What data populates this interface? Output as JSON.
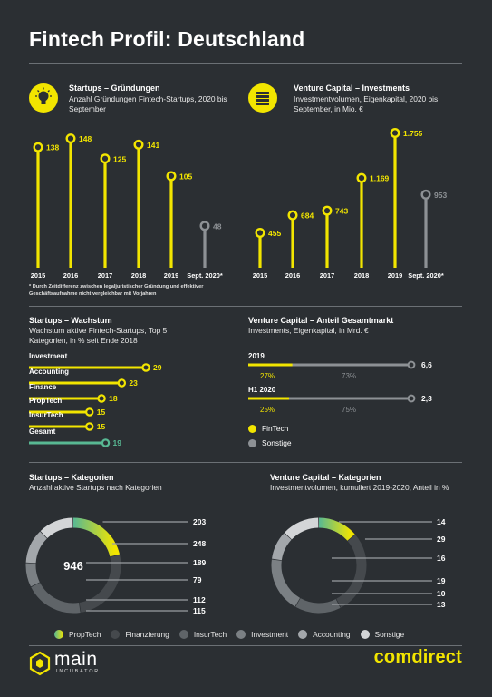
{
  "page": {
    "title": "Fintech Profil: Deutschland"
  },
  "colors": {
    "yellow": "#f2e500",
    "grey": "#8d9195",
    "bg": "#2b2f33",
    "green": "#58b893",
    "dim": "#5c6166"
  },
  "sections": {
    "startups_gruendungen": {
      "title": "Startups – Gründungen",
      "subtitle": "Anzahl Gründungen Fintech-Startups, 2020 bis September",
      "icon": "lightbulb-icon"
    },
    "vc_investments": {
      "title": "Venture Capital – Investments",
      "subtitle": "Investmentvolumen, Eigenkapital, 2020 bis September, in Mio. €",
      "icon": "money-stack-icon"
    },
    "startups_wachstum": {
      "title": "Startups – Wachstum",
      "subtitle": "Wachstum aktive Fintech-Startups, Top 5 Kategorien, in % seit Ende 2018"
    },
    "vc_anteil": {
      "title": "Venture Capital – Anteil Gesamtmarkt",
      "subtitle": "Investments, Eigenkapital, in Mrd. €"
    },
    "startups_kategorien": {
      "title": "Startups – Kategorien",
      "subtitle": "Anzahl aktive Startups nach Kategorien"
    },
    "vc_kategorien": {
      "title": "Venture Capital – Kategorien",
      "subtitle": "Investmentvolumen, kumuliert 2019-2020, Anteil in %"
    }
  },
  "footnote": "* Durch Zeitdifferenz zwischen legaljuristischer Gründung und effektiver Geschäftsaufnahme nicht vergleichbar mit Vorjahren",
  "chart_data": [
    {
      "id": "gruendungen",
      "type": "bar",
      "title": "Startups – Gründungen",
      "categories": [
        "2015",
        "2016",
        "2017",
        "2018",
        "2019",
        "Sept. 2020*"
      ],
      "values": [
        138,
        148,
        125,
        141,
        105,
        48
      ],
      "labels": [
        "138",
        "148",
        "125",
        "141",
        "105",
        "48"
      ],
      "highlight": [
        true,
        true,
        true,
        true,
        true,
        false
      ]
    },
    {
      "id": "investments",
      "type": "bar",
      "title": "Venture Capital – Investments",
      "categories": [
        "2015",
        "2016",
        "2017",
        "2018",
        "2019",
        "Sept. 2020*"
      ],
      "values": [
        455,
        684,
        743,
        1169,
        1755,
        953
      ],
      "labels": [
        "455",
        "684",
        "743",
        "1.169",
        "1.755",
        "953"
      ],
      "highlight": [
        true,
        true,
        true,
        true,
        true,
        false
      ]
    },
    {
      "id": "wachstum",
      "type": "bar",
      "title": "Startups – Wachstum",
      "categories": [
        "Investment",
        "Accounting",
        "Finance",
        "PropTech",
        "InsurTech",
        "Gesamt"
      ],
      "values": [
        29,
        23,
        18,
        15,
        15,
        19
      ],
      "labels": [
        "29",
        "23",
        "18",
        "15",
        "15",
        "19"
      ]
    },
    {
      "id": "anteil",
      "type": "bar",
      "title": "Venture Capital – Anteil Gesamtmarkt",
      "categories": [
        "2019",
        "H1 2020"
      ],
      "totals": [
        "6,6",
        "2,3"
      ],
      "series": [
        {
          "name": "FinTech",
          "values": [
            27,
            25
          ],
          "labels": [
            "27%",
            "25%"
          ]
        },
        {
          "name": "Sonstige",
          "values": [
            73,
            75
          ],
          "labels": [
            "73%",
            "75%"
          ]
        }
      ]
    },
    {
      "id": "startups_kat",
      "type": "pie",
      "title": "Startups – Kategorien",
      "center_label": "946",
      "values": [
        203,
        248,
        189,
        79,
        112,
        115
      ],
      "categories": [
        "PropTech",
        "Finanzierung",
        "InsurTech",
        "Investment",
        "Accounting",
        "Sonstige"
      ]
    },
    {
      "id": "vc_kat",
      "type": "pie",
      "title": "Venture Capital – Kategorien",
      "values": [
        14,
        29,
        16,
        19,
        10,
        13
      ],
      "categories": [
        "PropTech",
        "Finanzierung",
        "InsurTech",
        "Investment",
        "Accounting",
        "Sonstige"
      ]
    }
  ],
  "legend": {
    "anteil": [
      "FinTech",
      "Sonstige"
    ],
    "kategorien": [
      "PropTech",
      "Finanzierung",
      "InsurTech",
      "Investment",
      "Accounting",
      "Sonstige"
    ]
  },
  "logos": {
    "main": "main",
    "main_sub": "INCUBATOR",
    "comdirect": "comdirect"
  }
}
